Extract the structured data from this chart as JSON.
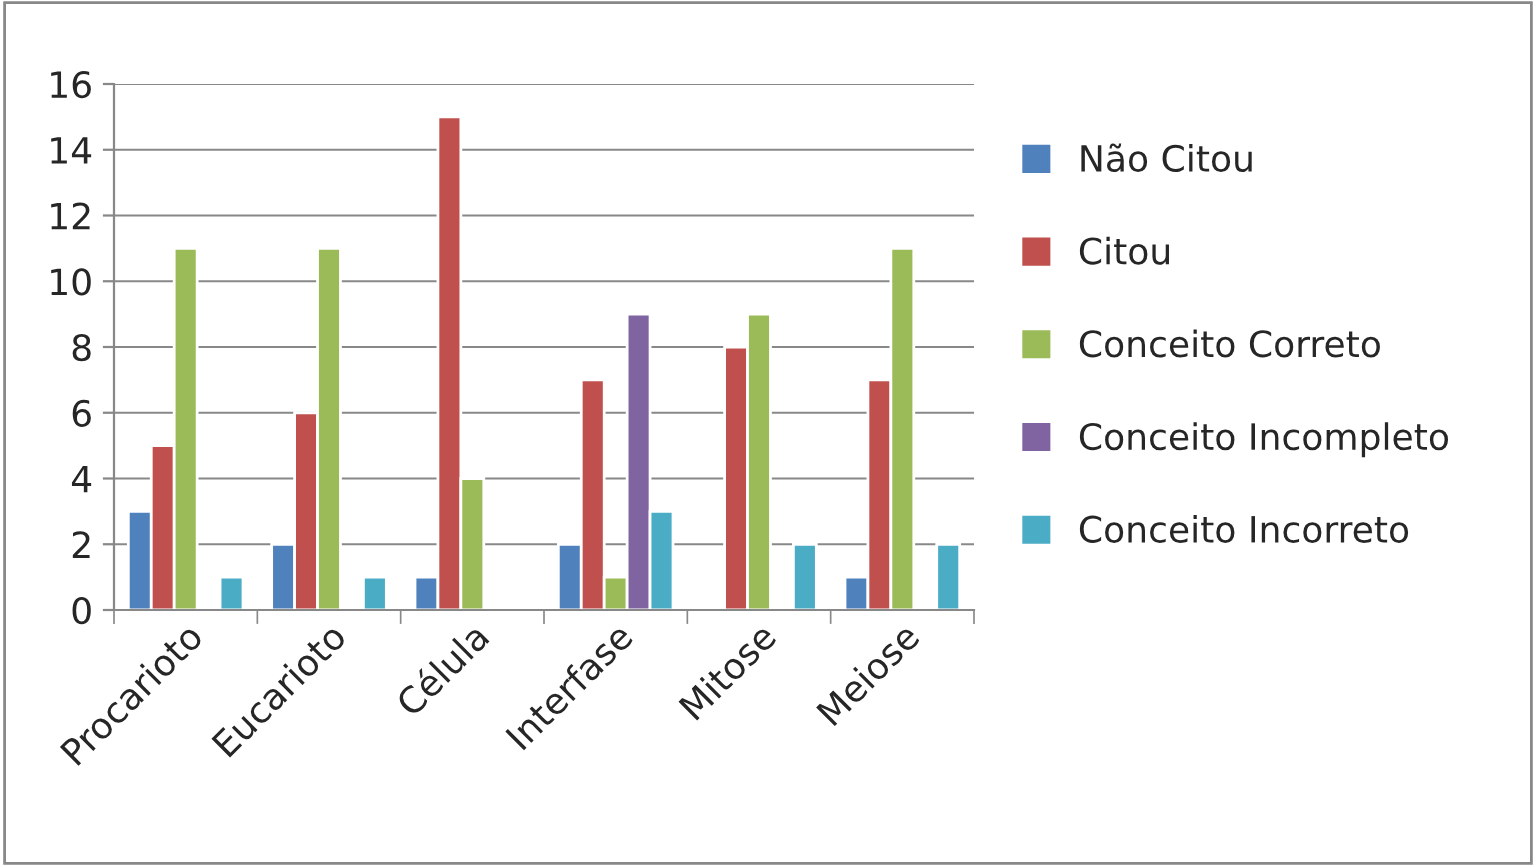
{
  "chart_data": {
    "type": "bar",
    "categories": [
      "Procarioto",
      "Eucarioto",
      "Célula",
      "Interfase",
      "Mitose",
      "Meiose"
    ],
    "series": [
      {
        "name": "Não Citou",
        "color": "#4f81bd",
        "values": [
          3,
          2,
          1,
          2,
          null,
          1
        ]
      },
      {
        "name": "Citou",
        "color": "#c0504d",
        "values": [
          5,
          6,
          15,
          7,
          8,
          7
        ]
      },
      {
        "name": "Conceito Correto",
        "color": "#9bbb59",
        "values": [
          11,
          11,
          4,
          1,
          9,
          11
        ]
      },
      {
        "name": "Conceito Incompleto",
        "color": "#8064a2",
        "values": [
          null,
          null,
          null,
          9,
          null,
          null
        ]
      },
      {
        "name": "Conceito Incorreto",
        "color": "#4bacc6",
        "values": [
          1,
          1,
          null,
          3,
          2,
          2
        ]
      }
    ],
    "ylim": [
      0,
      16
    ],
    "yticks": [
      0,
      2,
      4,
      6,
      8,
      10,
      12,
      14,
      16
    ],
    "grid": "y",
    "legend": "right"
  }
}
